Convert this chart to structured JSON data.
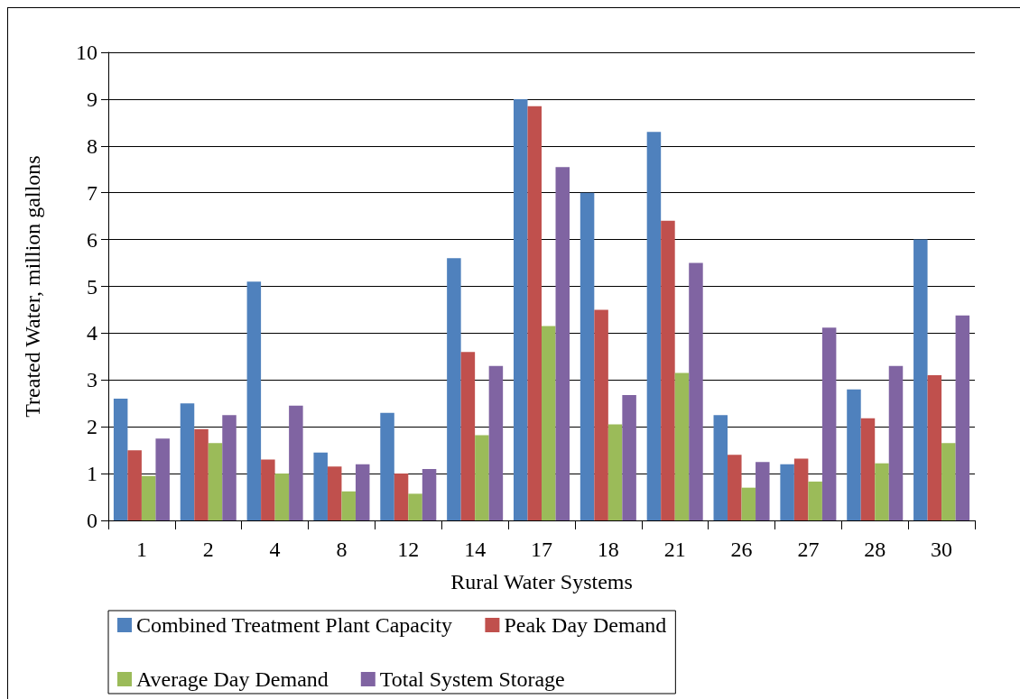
{
  "chart_data": {
    "type": "bar",
    "xlabel": "Rural Water Systems",
    "ylabel": "Treated Water, million gallons",
    "categories": [
      "1",
      "2",
      "4",
      "8",
      "12",
      "14",
      "17",
      "18",
      "21",
      "26",
      "27",
      "28",
      "30"
    ],
    "series": [
      {
        "name": "Combined Treatment Plant Capacity",
        "color": "#4f81bd",
        "values": [
          2.6,
          2.5,
          5.1,
          1.45,
          2.3,
          5.6,
          9.0,
          7.0,
          8.3,
          2.25,
          1.2,
          2.8,
          6.0
        ]
      },
      {
        "name": "Peak Day Demand",
        "color": "#c0504d",
        "values": [
          1.5,
          1.95,
          1.3,
          1.15,
          1.0,
          3.6,
          8.85,
          4.5,
          6.4,
          1.4,
          1.32,
          2.18,
          3.1
        ]
      },
      {
        "name": "Average Day Demand",
        "color": "#9bbb59",
        "values": [
          0.95,
          1.65,
          1.0,
          0.62,
          0.57,
          1.82,
          4.15,
          2.05,
          3.15,
          0.7,
          0.83,
          1.22,
          1.65
        ]
      },
      {
        "name": "Total System Storage",
        "color": "#8064a2",
        "values": [
          1.75,
          2.25,
          2.45,
          1.2,
          1.1,
          3.3,
          7.55,
          2.68,
          5.5,
          1.25,
          4.12,
          3.3,
          4.38
        ]
      }
    ],
    "ylim": [
      0,
      10
    ],
    "yticks": [
      0,
      1,
      2,
      3,
      4,
      5,
      6,
      7,
      8,
      9,
      10
    ],
    "grid": "y",
    "legend": "bottom"
  }
}
